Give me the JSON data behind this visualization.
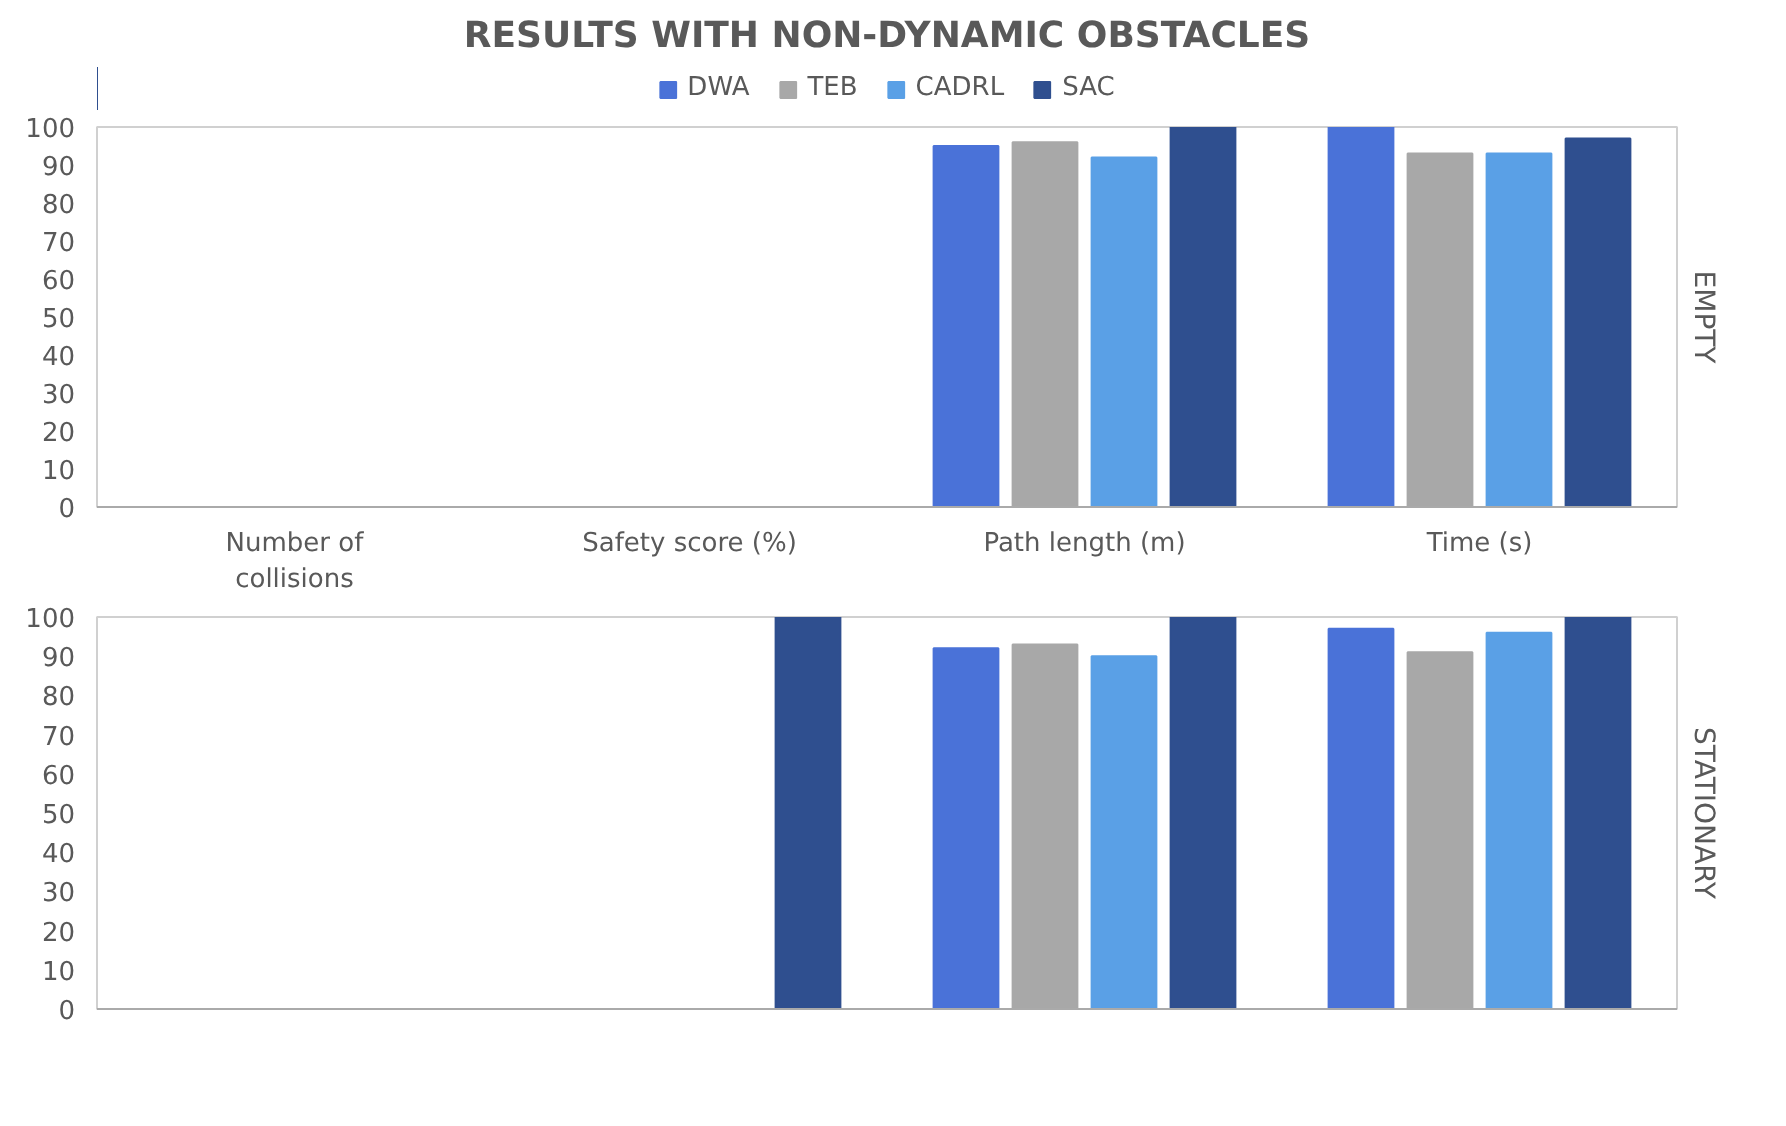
{
  "chart_data": [
    {
      "type": "bar",
      "title": "RESULTS WITH NON-DYNAMIC OBSTACLES",
      "categories": [
        "Number of collisions",
        "Safety score (%)",
        "Path length (m)",
        "Time (s)"
      ],
      "series": [
        {
          "name": "DWA",
          "color": "#4a72d8",
          "values": [
            0,
            0,
            95,
            100
          ]
        },
        {
          "name": "TEB",
          "color": "#a8a8a8",
          "values": [
            0,
            0,
            96,
            93
          ]
        },
        {
          "name": "CADRL",
          "color": "#5aa0e6",
          "values": [
            0,
            0,
            92,
            93
          ]
        },
        {
          "name": "SAC",
          "color": "#2f4f8f",
          "values": [
            0,
            0,
            100,
            97
          ]
        }
      ],
      "ylim": [
        0,
        100
      ],
      "yticks": [
        0,
        10,
        20,
        30,
        40,
        50,
        60,
        70,
        80,
        90,
        100
      ],
      "grid": false,
      "legend": "top",
      "annotations": [
        "EMPTY"
      ]
    },
    {
      "type": "bar",
      "categories": [
        null,
        null,
        null,
        null
      ],
      "series": [
        {
          "color": "#4a72d8",
          "values": [
            0,
            0,
            92,
            97
          ]
        },
        {
          "color": "#a8a8a8",
          "values": [
            0,
            0,
            93,
            91
          ]
        },
        {
          "color": "#5aa0e6",
          "values": [
            0,
            0,
            90,
            96
          ]
        },
        {
          "color": "#2f4f8f",
          "values": [
            0,
            100,
            100,
            100
          ]
        }
      ],
      "ylim": [
        0,
        100
      ],
      "yticks": [
        0,
        10,
        20,
        30,
        40,
        50,
        60,
        70,
        80,
        90,
        100
      ],
      "grid": false,
      "legend": false,
      "tick_labels": "y",
      "annotations": [
        "STATIONARY"
      ]
    }
  ]
}
